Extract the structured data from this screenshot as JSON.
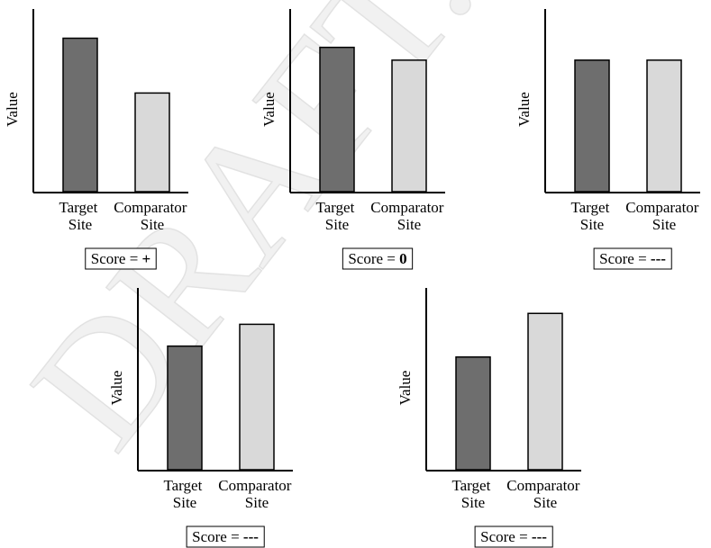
{
  "watermark": "DRAFT.",
  "chart_data": [
    {
      "type": "bar",
      "y_label": "Value",
      "categories": [
        "Target Site",
        "Comparator Site"
      ],
      "values": [
        84,
        54
      ],
      "colors": [
        "#6e6e6e",
        "#d9d9d9"
      ],
      "ylim": [
        0,
        100
      ],
      "score_label": "Score =",
      "score": "+"
    },
    {
      "type": "bar",
      "y_label": "Value",
      "categories": [
        "Target Site",
        "Comparator Site"
      ],
      "values": [
        79,
        72
      ],
      "colors": [
        "#6e6e6e",
        "#d9d9d9"
      ],
      "ylim": [
        0,
        100
      ],
      "score_label": "Score =",
      "score": "0"
    },
    {
      "type": "bar",
      "y_label": "Value",
      "categories": [
        "Target Site",
        "Comparator Site"
      ],
      "values": [
        72,
        72
      ],
      "colors": [
        "#6e6e6e",
        "#d9d9d9"
      ],
      "ylim": [
        0,
        100
      ],
      "score_label": "Score =",
      "score": "---"
    },
    {
      "type": "bar",
      "y_label": "Value",
      "categories": [
        "Target Site",
        "Comparator Site"
      ],
      "values": [
        68,
        80
      ],
      "colors": [
        "#6e6e6e",
        "#d9d9d9"
      ],
      "ylim": [
        0,
        100
      ],
      "score_label": "Score =",
      "score": "---"
    },
    {
      "type": "bar",
      "y_label": "Value",
      "categories": [
        "Target Site",
        "Comparator Site"
      ],
      "values": [
        62,
        86
      ],
      "colors": [
        "#6e6e6e",
        "#d9d9d9"
      ],
      "ylim": [
        0,
        100
      ],
      "score_label": "Score =",
      "score": "---"
    }
  ]
}
